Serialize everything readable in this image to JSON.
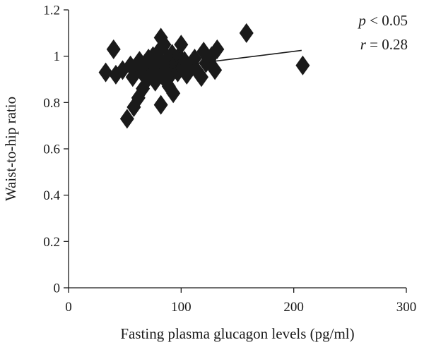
{
  "chart_data": {
    "type": "scatter",
    "xlabel": "Fasting plasma glucagon levels (pg/ml)",
    "ylabel": "Waist-to-hip ratio",
    "xlim": [
      0,
      300
    ],
    "ylim": [
      0,
      1.2
    ],
    "x_ticks": [
      0,
      100,
      200,
      300
    ],
    "y_ticks": [
      0,
      0.2,
      0.4,
      0.6,
      0.8,
      1,
      1.2
    ],
    "x_tick_labels": [
      "0",
      "100",
      "200",
      "300"
    ],
    "y_tick_labels": [
      "0",
      "0.2",
      "0.4",
      "0.6",
      "0.8",
      "1",
      "1.2"
    ],
    "grid": false,
    "marker": "diamond",
    "marker_color": "#1a1a1a",
    "annotations": [
      {
        "var": "p",
        "rest": " < 0.05"
      },
      {
        "var": "r",
        "rest": " = 0.28"
      }
    ],
    "trendline": {
      "x": [
        33,
        207
      ],
      "y": [
        0.92,
        1.025
      ]
    },
    "points": [
      {
        "x": 33,
        "y": 0.93
      },
      {
        "x": 40,
        "y": 1.03
      },
      {
        "x": 42,
        "y": 0.92
      },
      {
        "x": 48,
        "y": 0.94
      },
      {
        "x": 52,
        "y": 0.73
      },
      {
        "x": 55,
        "y": 0.96
      },
      {
        "x": 57,
        "y": 0.91
      },
      {
        "x": 58,
        "y": 0.78
      },
      {
        "x": 60,
        "y": 0.95
      },
      {
        "x": 62,
        "y": 0.82
      },
      {
        "x": 63,
        "y": 0.98
      },
      {
        "x": 65,
        "y": 0.93
      },
      {
        "x": 66,
        "y": 0.86
      },
      {
        "x": 68,
        "y": 0.97
      },
      {
        "x": 70,
        "y": 0.9
      },
      {
        "x": 71,
        "y": 0.99
      },
      {
        "x": 72,
        "y": 0.94
      },
      {
        "x": 74,
        "y": 0.96
      },
      {
        "x": 75,
        "y": 1.0
      },
      {
        "x": 76,
        "y": 0.92
      },
      {
        "x": 77,
        "y": 0.89
      },
      {
        "x": 78,
        "y": 0.98
      },
      {
        "x": 79,
        "y": 0.95
      },
      {
        "x": 80,
        "y": 1.02
      },
      {
        "x": 81,
        "y": 0.93
      },
      {
        "x": 82,
        "y": 1.08
      },
      {
        "x": 82,
        "y": 0.79
      },
      {
        "x": 83,
        "y": 0.97
      },
      {
        "x": 84,
        "y": 0.91
      },
      {
        "x": 85,
        "y": 1.05
      },
      {
        "x": 86,
        "y": 0.94
      },
      {
        "x": 88,
        "y": 0.99
      },
      {
        "x": 89,
        "y": 0.87
      },
      {
        "x": 90,
        "y": 0.96
      },
      {
        "x": 91,
        "y": 0.92
      },
      {
        "x": 92,
        "y": 1.01
      },
      {
        "x": 93,
        "y": 0.84
      },
      {
        "x": 95,
        "y": 0.97
      },
      {
        "x": 97,
        "y": 0.93
      },
      {
        "x": 98,
        "y": 1.0
      },
      {
        "x": 100,
        "y": 1.05
      },
      {
        "x": 101,
        "y": 0.95
      },
      {
        "x": 103,
        "y": 0.98
      },
      {
        "x": 105,
        "y": 0.92
      },
      {
        "x": 108,
        "y": 0.96
      },
      {
        "x": 112,
        "y": 0.99
      },
      {
        "x": 115,
        "y": 0.93
      },
      {
        "x": 118,
        "y": 0.91
      },
      {
        "x": 120,
        "y": 1.02
      },
      {
        "x": 122,
        "y": 0.97
      },
      {
        "x": 125,
        "y": 0.98
      },
      {
        "x": 127,
        "y": 1.0
      },
      {
        "x": 130,
        "y": 0.94
      },
      {
        "x": 132,
        "y": 1.03
      },
      {
        "x": 158,
        "y": 1.1
      },
      {
        "x": 208,
        "y": 0.96
      }
    ]
  }
}
